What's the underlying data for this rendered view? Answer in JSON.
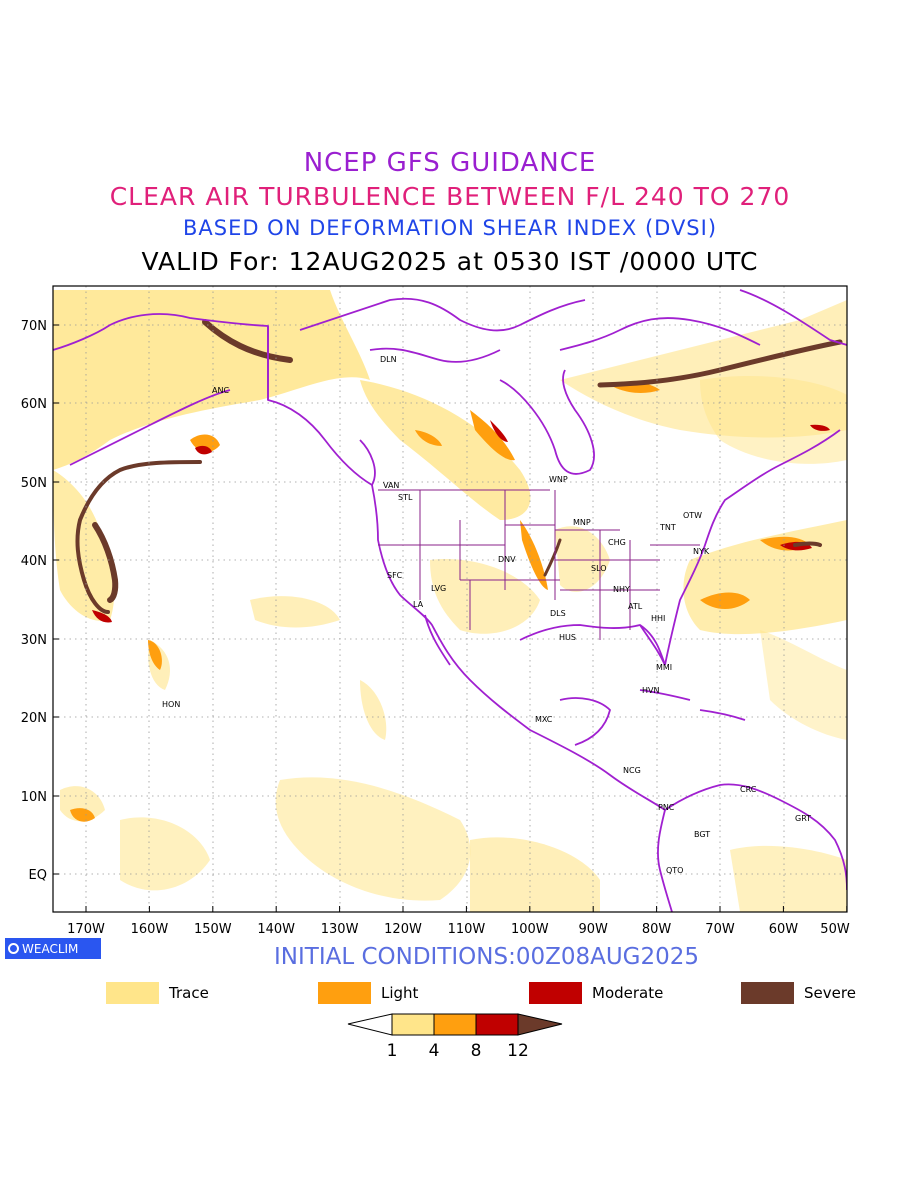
{
  "title": {
    "line1": "NCEP GFS GUIDANCE",
    "line2": "CLEAR AIR TURBULENCE BETWEEN F/L 240 TO 270",
    "line3": "BASED ON DEFORMATION SHEAR INDEX (DVSI)",
    "line4": "VALID For: 12AUG2025 at 0530 IST /0000 UTC"
  },
  "axes": {
    "lat_labels": [
      "70N",
      "60N",
      "50N",
      "40N",
      "30N",
      "20N",
      "10N",
      "EQ"
    ],
    "lon_labels": [
      "170W",
      "160W",
      "150W",
      "140W",
      "130W",
      "120W",
      "110W",
      "100W",
      "90W",
      "80W",
      "70W",
      "60W",
      "50W"
    ]
  },
  "stations": [
    {
      "name": "DLN"
    },
    {
      "name": "ANC"
    },
    {
      "name": "VAN"
    },
    {
      "name": "STL"
    },
    {
      "name": "WNP"
    },
    {
      "name": "MNP"
    },
    {
      "name": "OTW"
    },
    {
      "name": "TNT"
    },
    {
      "name": "NYK"
    },
    {
      "name": "CHG"
    },
    {
      "name": "DNV"
    },
    {
      "name": "SLO"
    },
    {
      "name": "SFC"
    },
    {
      "name": "LVG"
    },
    {
      "name": "NHY"
    },
    {
      "name": "LA"
    },
    {
      "name": "ATL"
    },
    {
      "name": "DLS"
    },
    {
      "name": "HHI"
    },
    {
      "name": "HUS"
    },
    {
      "name": "MMI"
    },
    {
      "name": "HVN"
    },
    {
      "name": "HON"
    },
    {
      "name": "MXC"
    },
    {
      "name": "NCG"
    },
    {
      "name": "CRC"
    },
    {
      "name": "PNC"
    },
    {
      "name": "GRT"
    },
    {
      "name": "BGT"
    },
    {
      "name": "QTO"
    }
  ],
  "brand": "WEACLIM",
  "initial_conditions": "INITIAL CONDITIONS:00Z08AUG2025",
  "legend": [
    {
      "label": "Trace",
      "color": "#ffe58a"
    },
    {
      "label": "Light",
      "color": "#ff9f0f"
    },
    {
      "label": "Moderate",
      "color": "#c00000"
    },
    {
      "label": "Severe",
      "color": "#6b3a2a"
    }
  ],
  "colorbar": {
    "ticks": [
      "1",
      "4",
      "8",
      "12"
    ],
    "colors": [
      "#ffffff",
      "#ffe58a",
      "#ff9f0f",
      "#c00000",
      "#6b3a2a"
    ]
  },
  "colors": {
    "boundary": "#a020d0",
    "grid": "#999999"
  }
}
